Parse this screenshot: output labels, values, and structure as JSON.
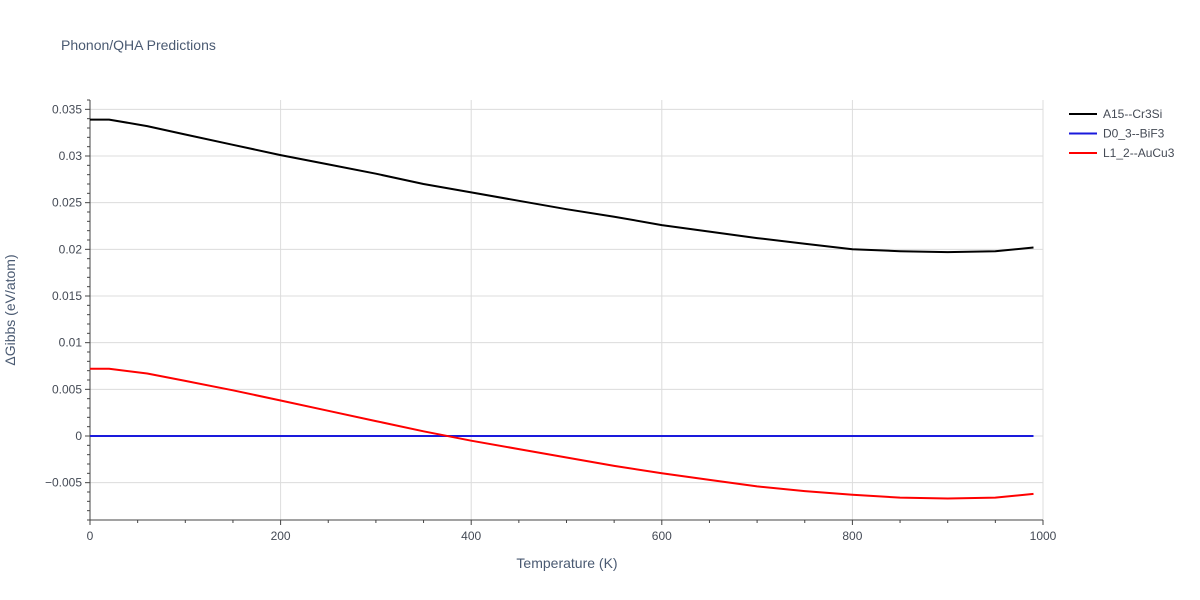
{
  "chart_data": {
    "type": "line",
    "title": "Phonon/QHA Predictions",
    "xlabel": "Temperature (K)",
    "ylabel": "ΔGibbs (eV/atom)",
    "xlim": [
      0,
      1000
    ],
    "ylim": [
      -0.009,
      0.036
    ],
    "xticks": [
      0,
      200,
      400,
      600,
      800,
      1000
    ],
    "xtick_labels": [
      "0",
      "200",
      "400",
      "600",
      "800",
      "1000"
    ],
    "yticks": [
      -0.005,
      0,
      0.005,
      0.01,
      0.015,
      0.02,
      0.025,
      0.03,
      0.035
    ],
    "ytick_labels": [
      "−0.005",
      "0",
      "0.005",
      "0.01",
      "0.015",
      "0.02",
      "0.025",
      "0.03",
      "0.035"
    ],
    "grid": true,
    "legend_position": "top-right",
    "series": [
      {
        "name": "A15--Cr3Si",
        "color": "#000000",
        "x": [
          0,
          20,
          60,
          100,
          150,
          200,
          250,
          300,
          350,
          400,
          450,
          500,
          550,
          600,
          650,
          700,
          750,
          800,
          850,
          900,
          950,
          990
        ],
        "y": [
          0.0339,
          0.0339,
          0.0332,
          0.0323,
          0.0312,
          0.0301,
          0.0291,
          0.0281,
          0.027,
          0.0261,
          0.0252,
          0.0243,
          0.0235,
          0.0226,
          0.0219,
          0.0212,
          0.0206,
          0.02,
          0.0198,
          0.0197,
          0.0198,
          0.0202
        ]
      },
      {
        "name": "D0_3--BiF3",
        "color": "#1a1adc",
        "x": [
          0,
          990
        ],
        "y": [
          0,
          0
        ]
      },
      {
        "name": "L1_2--AuCu3",
        "color": "#ff0000",
        "x": [
          0,
          20,
          60,
          100,
          150,
          200,
          250,
          300,
          350,
          400,
          450,
          500,
          550,
          600,
          650,
          700,
          750,
          800,
          850,
          900,
          950,
          990
        ],
        "y": [
          0.0072,
          0.0072,
          0.0067,
          0.0059,
          0.0049,
          0.0038,
          0.0027,
          0.0016,
          0.0005,
          -0.0005,
          -0.0014,
          -0.0023,
          -0.0032,
          -0.004,
          -0.0047,
          -0.0054,
          -0.0059,
          -0.0063,
          -0.0066,
          -0.0067,
          -0.0066,
          -0.0062
        ]
      }
    ]
  }
}
